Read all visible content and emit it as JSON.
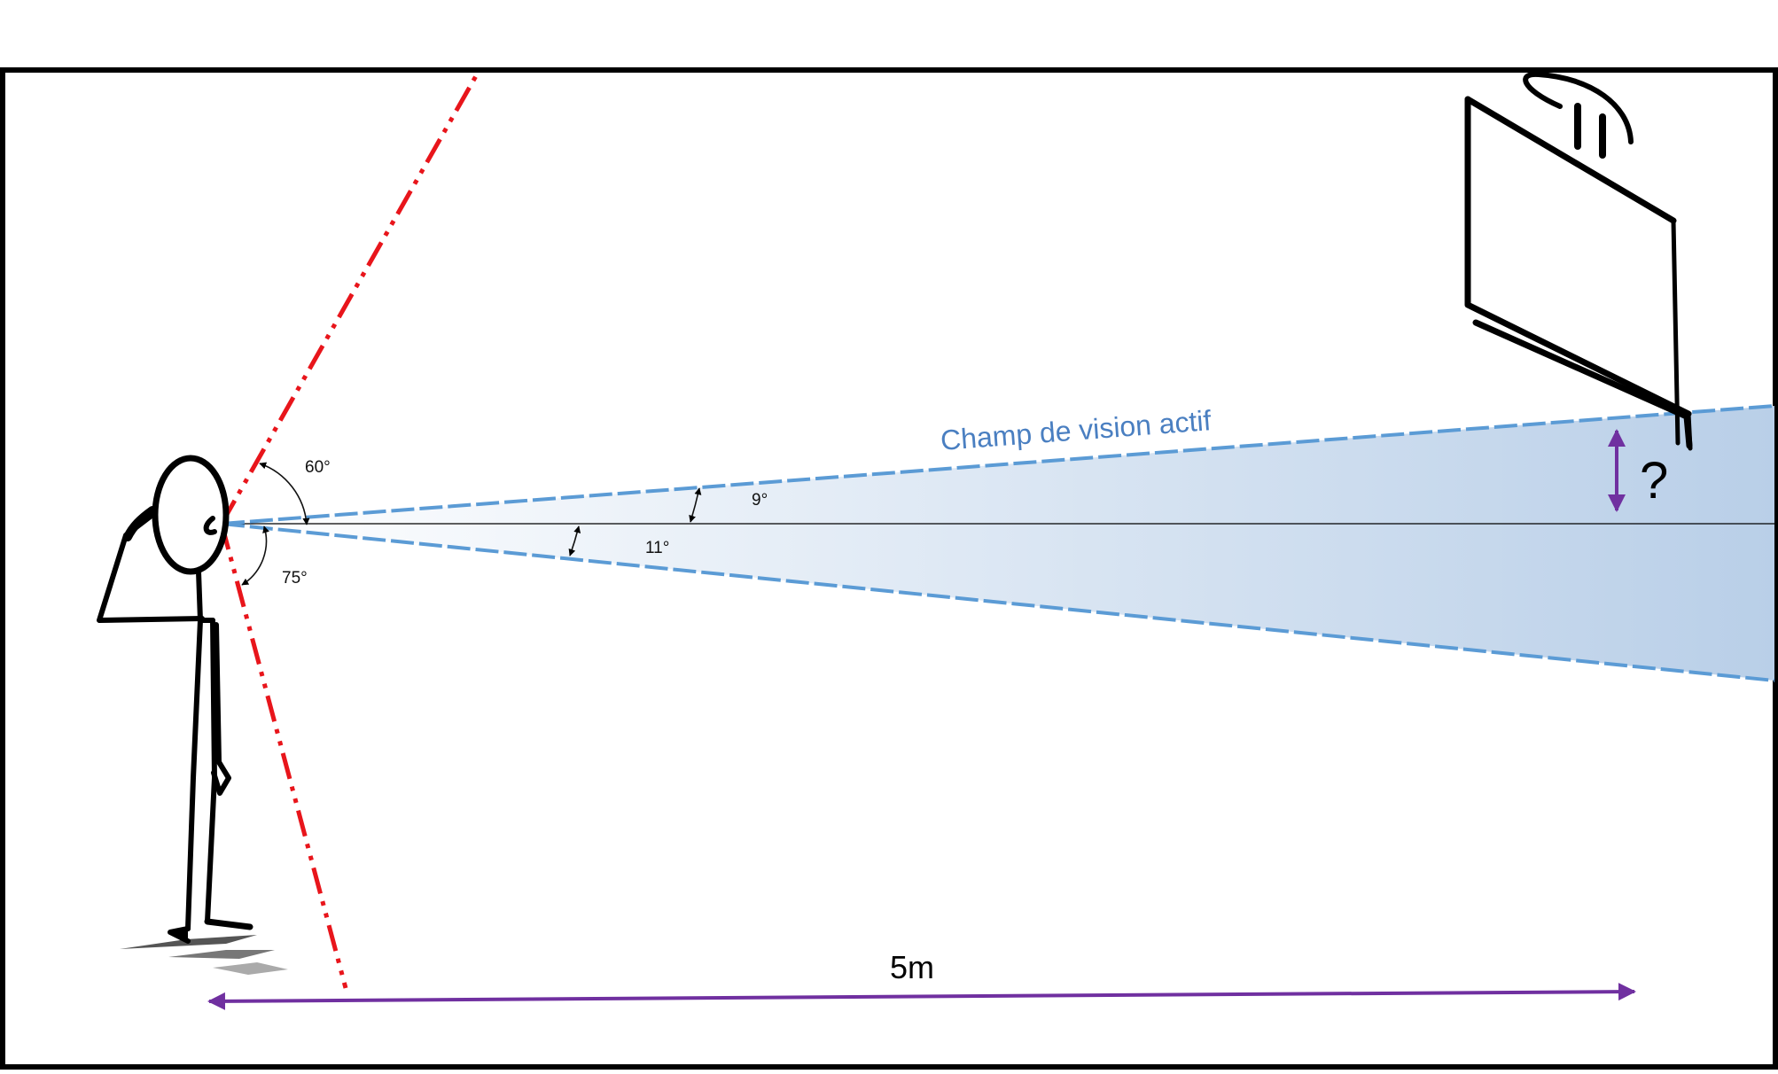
{
  "labels": {
    "field_of_view": "Champ de vision actif",
    "question": "?",
    "distance": "5m",
    "angle_upper_limit": "60°",
    "angle_lower_limit": "75°",
    "angle_upper_active": "9°",
    "angle_lower_active": "11°"
  },
  "colors": {
    "background": "#ffffff",
    "frame": "#000000",
    "limit_lines": "#e8151b",
    "active_field_edge": "#5b9bd5",
    "active_field_fill": "#b9cfe8",
    "measure_arrows": "#7030a0",
    "figure": "#000000"
  },
  "icons": {
    "person": "stick-figure-icon",
    "screen": "wall-screen-icon"
  }
}
